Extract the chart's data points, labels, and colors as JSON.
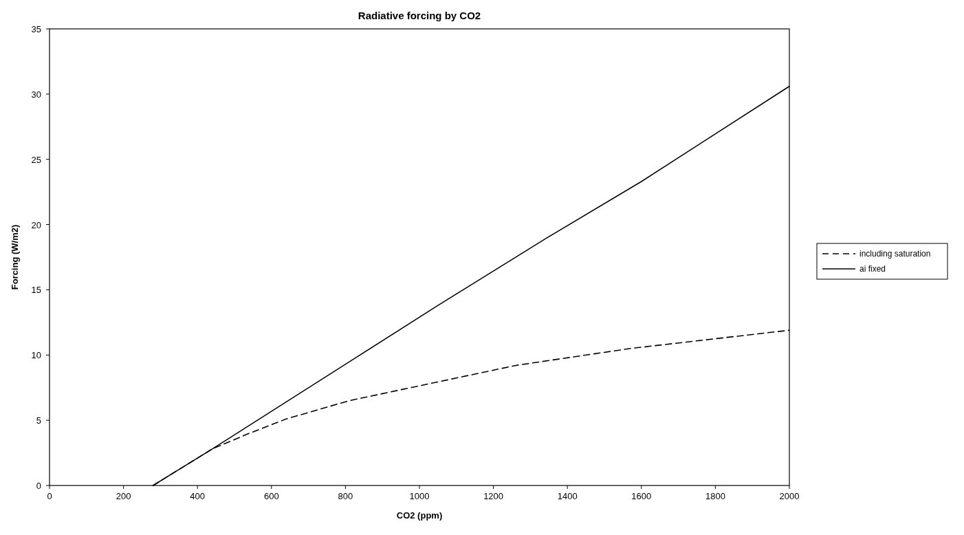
{
  "chart_data": {
    "type": "line",
    "title": "Radiative forcing by CO2",
    "xlabel": "CO2 (ppm)",
    "ylabel": "Forcing (W/m2)",
    "xlim": [
      0,
      2000
    ],
    "xticks": [
      0,
      200,
      400,
      600,
      800,
      1000,
      1200,
      1400,
      1600,
      1800,
      2000
    ],
    "ylim": [
      0,
      35
    ],
    "yticks": [
      0,
      5,
      10,
      15,
      20,
      25,
      30,
      35
    ],
    "legend": "right",
    "series": [
      {
        "name": "including saturation",
        "color": "#000000",
        "line_style": "dashed",
        "x": [
          280,
          360,
          440,
          540,
          640,
          810,
          1060,
          1260,
          1570,
          2000
        ],
        "values": [
          0,
          1.4,
          2.8,
          4.0,
          5.1,
          6.5,
          8.0,
          9.2,
          10.5,
          11.9
        ]
      },
      {
        "name": "ai fixed",
        "color": "#000000",
        "line_style": "solid",
        "x": [
          280,
          440,
          1050,
          1340,
          1600,
          2000
        ],
        "values": [
          0,
          2.8,
          13.8,
          18.9,
          23.3,
          30.6
        ]
      }
    ]
  }
}
